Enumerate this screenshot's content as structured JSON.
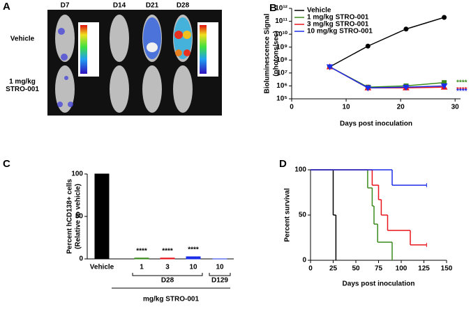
{
  "panel_a": {
    "letter": "A",
    "days": [
      "D7",
      "D14",
      "D21",
      "D28"
    ],
    "rows": [
      "Vehicle",
      "1 mg/kg STRO-001"
    ]
  },
  "chart_data": [
    {
      "panel": "B",
      "type": "line",
      "ylog": true,
      "xlabel": "Days post inoculation",
      "ylabel": [
        "Bioluminescence Signal",
        "(photons/sec)"
      ],
      "xlim": [
        0,
        31
      ],
      "xticks": [
        0,
        10,
        20,
        30
      ],
      "ylim": [
        100000,
        1000000000000
      ],
      "yticks": [
        {
          "value": 100000,
          "label": "10⁵"
        },
        {
          "value": 1000000,
          "label": "10⁶"
        },
        {
          "value": 10000000,
          "label": "10⁷"
        },
        {
          "value": 100000000,
          "label": "10⁸"
        },
        {
          "value": 1000000000,
          "label": "10⁹"
        },
        {
          "value": 10000000000,
          "label": "10¹⁰"
        },
        {
          "value": 100000000000,
          "label": "10¹¹"
        },
        {
          "value": 1000000000000,
          "label": "10¹²"
        }
      ],
      "legend": "upper-left",
      "x": [
        7,
        14,
        21,
        28
      ],
      "series": [
        {
          "name": "Vehicle",
          "color": "#000000",
          "marker": "circle",
          "values": [
            30000000,
            1200000000,
            25000000000,
            200000000000
          ]
        },
        {
          "name": "1 mg/kg STRO-001",
          "color": "#3a8a1c",
          "marker": "square",
          "values": [
            30000000,
            800000,
            1000000,
            1800000
          ],
          "annotation": "****"
        },
        {
          "name": "3 mg/kg STRO-001",
          "color": "#e8141c",
          "marker": "triangle",
          "values": [
            30000000,
            700000,
            700000,
            800000
          ],
          "annotation": "****"
        },
        {
          "name": " 10 mg/kg STRO-001",
          "color": "#1a2de8",
          "marker": "triangle-down",
          "values": [
            30000000,
            700000,
            800000,
            1000000
          ],
          "annotation": "****"
        }
      ]
    },
    {
      "panel": "C",
      "type": "bar",
      "ylabel": [
        "Percent hCD138+ cells",
        "(Relative to vehicle)"
      ],
      "ylim": [
        0,
        100
      ],
      "yticks": [
        0,
        50,
        100
      ],
      "categories": [
        "Vehicle",
        "1",
        "3",
        "10",
        "10"
      ],
      "values": [
        100,
        1,
        1,
        2.5,
        0
      ],
      "colors": [
        "#000000",
        "#3a8a1c",
        "#e8141c",
        "#1a2de8",
        "#1a2de8"
      ],
      "annotations": [
        null,
        "****",
        "****",
        "****",
        null
      ],
      "group_labels": [
        "D28",
        "D129"
      ],
      "xlabel": "mg/kg STRO-001"
    },
    {
      "panel": "D",
      "type": "line",
      "step": true,
      "xlabel": "Days post inoculation",
      "ylabel": [
        "Percent survival"
      ],
      "xlim": [
        0,
        150
      ],
      "xticks": [
        0,
        25,
        50,
        75,
        100,
        125,
        150
      ],
      "ylim": [
        0,
        100
      ],
      "yticks": [
        0,
        50,
        100
      ],
      "series": [
        {
          "color": "#000000",
          "x": [
            0,
            25,
            28
          ],
          "values": [
            100,
            50,
            0
          ]
        },
        {
          "color": "#3a8a1c",
          "x": [
            0,
            63,
            68,
            70,
            74,
            90
          ],
          "values": [
            100,
            80,
            60,
            40,
            20,
            0
          ]
        },
        {
          "color": "#e8141c",
          "x": [
            0,
            68,
            75,
            78,
            85,
            110,
            128
          ],
          "values": [
            100,
            83,
            67,
            50,
            33,
            17,
            17
          ]
        },
        {
          "color": "#1a2de8",
          "x": [
            0,
            90,
            128
          ],
          "values": [
            100,
            83,
            83
          ]
        }
      ]
    }
  ]
}
